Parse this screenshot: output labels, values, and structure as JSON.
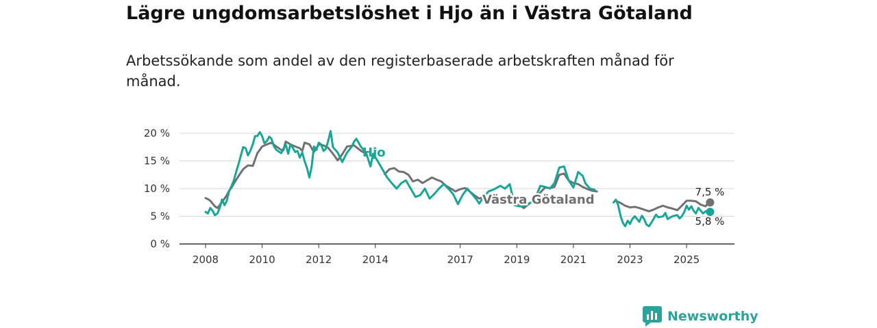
{
  "header": {
    "title": "Lägre ungdomsarbetslöshet i Hjo än i Västra Götaland",
    "subtitle": "Arbetssökande som andel av den registerbaserade arbetskraften månad för månad."
  },
  "brand": {
    "name": "Newsworthy",
    "icon": "newsworthy-logo-icon",
    "color": "#2aa39a"
  },
  "chart_data": {
    "type": "line",
    "title": "Lägre ungdomsarbetslöshet i Hjo än i Västra Götaland",
    "subtitle": "Arbetssökande som andel av den registerbaserade arbetskraften månad för månad.",
    "xlabel": "",
    "ylabel": "",
    "xlim": [
      2008,
      2025.83
    ],
    "ylim": [
      0,
      20
    ],
    "grid": true,
    "x_ticks": [
      2008,
      2010,
      2012,
      2014,
      2017,
      2019,
      2021,
      2023,
      2025
    ],
    "x_tick_labels": [
      "2008",
      "2010",
      "2012",
      "2014",
      "2017",
      "2019",
      "2021",
      "2023",
      "2025"
    ],
    "y_ticks": [
      0,
      5,
      10,
      15,
      20
    ],
    "y_tick_labels": [
      "0 %",
      "5 %",
      "10 %",
      "15 %",
      "20 %"
    ],
    "series": [
      {
        "name": "Västra Götaland",
        "label": "Västra Götaland",
        "color": "#707070",
        "end_label": "7,5 %",
        "points": [
          [
            2008,
            8.3
          ],
          [
            2008.08,
            8.1
          ],
          [
            2008.17,
            7.8
          ],
          [
            2008.25,
            7.3
          ],
          [
            2008.33,
            6.8
          ],
          [
            2008.42,
            6.5
          ],
          [
            2008.5,
            7.0
          ],
          [
            2008.58,
            7.6
          ],
          [
            2008.67,
            8.2
          ],
          [
            2008.75,
            8.8
          ],
          [
            2008.83,
            9.6
          ],
          [
            2008.92,
            10.2
          ],
          [
            2009,
            10.9
          ],
          [
            2009.17,
            12.3
          ],
          [
            2009.33,
            13.5
          ],
          [
            2009.5,
            14.2
          ],
          [
            2009.67,
            14.1
          ],
          [
            2009.83,
            16.4
          ],
          [
            2010,
            17.6
          ],
          [
            2010.17,
            18.0
          ],
          [
            2010.33,
            18.3
          ],
          [
            2010.5,
            17.6
          ],
          [
            2010.67,
            17.0
          ],
          [
            2010.75,
            16.9
          ],
          [
            2010.83,
            18.5
          ],
          [
            2011,
            18.0
          ],
          [
            2011.17,
            17.6
          ],
          [
            2011.33,
            17.3
          ],
          [
            2011.42,
            16.8
          ],
          [
            2011.5,
            18.3
          ],
          [
            2011.67,
            18.0
          ],
          [
            2011.83,
            16.6
          ],
          [
            2012,
            18.0
          ],
          [
            2012.17,
            17.8
          ],
          [
            2012.33,
            17.4
          ],
          [
            2012.5,
            16.3
          ],
          [
            2012.67,
            15.1
          ],
          [
            2012.83,
            16.2
          ],
          [
            2013,
            17.6
          ],
          [
            2013.25,
            17.8
          ],
          [
            2013.5,
            16.8
          ],
          [
            2013.6,
            16.5
          ],
          [
            2013.67,
            16.2
          ],
          [
            2014.33,
            12.6
          ],
          [
            2014.5,
            13.5
          ],
          [
            2014.67,
            13.7
          ],
          [
            2014.83,
            13.1
          ],
          [
            2015,
            13.0
          ],
          [
            2015.17,
            12.5
          ],
          [
            2015.33,
            11.3
          ],
          [
            2015.5,
            11.6
          ],
          [
            2015.67,
            11.0
          ],
          [
            2015.83,
            11.5
          ],
          [
            2016,
            12.0
          ],
          [
            2016.17,
            11.6
          ],
          [
            2016.33,
            11.3
          ],
          [
            2016.5,
            10.5
          ],
          [
            2016.67,
            10.0
          ],
          [
            2016.83,
            9.5
          ],
          [
            2017,
            9.9
          ],
          [
            2017.17,
            10.1
          ],
          [
            2017.33,
            9.5
          ],
          [
            2017.5,
            8.8
          ],
          [
            2017.67,
            8.2
          ],
          [
            2017.83,
            8.5
          ],
          [
            2018,
            8.4
          ],
          [
            2018.25,
            8.0
          ],
          [
            2018.42,
            7.7
          ],
          [
            2018.58,
            7.6
          ],
          [
            2018.75,
            7.4
          ],
          [
            2018.92,
            7.3
          ],
          [
            2019.08,
            7.0
          ],
          [
            2019.25,
            6.5
          ],
          [
            2019.42,
            7.2
          ],
          [
            2019.5,
            7.5
          ],
          [
            2019.67,
            8.0
          ],
          [
            2019.83,
            9.3
          ],
          [
            2020,
            10.2
          ],
          [
            2020.17,
            10.1
          ],
          [
            2020.33,
            10.3
          ],
          [
            2020.5,
            12.5
          ],
          [
            2020.67,
            12.7
          ],
          [
            2020.83,
            11.5
          ],
          [
            2021,
            11.0
          ],
          [
            2021.17,
            10.8
          ],
          [
            2021.33,
            10.3
          ],
          [
            2021.5,
            9.9
          ],
          [
            2021.67,
            9.6
          ],
          [
            2021.83,
            9.5
          ],
          [
            2022.5,
            7.8
          ],
          [
            2022.67,
            7.4
          ],
          [
            2022.83,
            6.9
          ],
          [
            2023,
            6.6
          ],
          [
            2023.17,
            6.7
          ],
          [
            2023.33,
            6.5
          ],
          [
            2023.5,
            6.2
          ],
          [
            2023.67,
            5.9
          ],
          [
            2023.83,
            6.2
          ],
          [
            2024,
            6.6
          ],
          [
            2024.17,
            6.9
          ],
          [
            2024.33,
            6.6
          ],
          [
            2024.5,
            6.4
          ],
          [
            2024.67,
            6.1
          ],
          [
            2024.83,
            6.9
          ],
          [
            2025,
            7.8
          ],
          [
            2025.17,
            7.8
          ],
          [
            2025.33,
            7.7
          ],
          [
            2025.5,
            7.1
          ],
          [
            2025.67,
            6.8
          ],
          [
            2025.75,
            7.4
          ],
          [
            2025.83,
            7.5
          ]
        ]
      },
      {
        "name": "Hjo",
        "label": "Hjo",
        "color": "#17a597",
        "end_label": "5,8 %",
        "points": [
          [
            2008,
            5.8
          ],
          [
            2008.08,
            5.5
          ],
          [
            2008.17,
            6.5
          ],
          [
            2008.25,
            6.0
          ],
          [
            2008.33,
            5.2
          ],
          [
            2008.42,
            5.5
          ],
          [
            2008.5,
            6.5
          ],
          [
            2008.58,
            8.0
          ],
          [
            2008.67,
            7.0
          ],
          [
            2008.75,
            7.8
          ],
          [
            2008.83,
            9.5
          ],
          [
            2008.92,
            10.5
          ],
          [
            2009,
            11.5
          ],
          [
            2009.08,
            13.0
          ],
          [
            2009.17,
            14.5
          ],
          [
            2009.25,
            16.0
          ],
          [
            2009.33,
            17.5
          ],
          [
            2009.42,
            17.3
          ],
          [
            2009.5,
            16.0
          ],
          [
            2009.58,
            16.8
          ],
          [
            2009.67,
            18.0
          ],
          [
            2009.75,
            19.5
          ],
          [
            2009.83,
            19.5
          ],
          [
            2009.92,
            20.2
          ],
          [
            2010,
            19.5
          ],
          [
            2010.08,
            18.2
          ],
          [
            2010.17,
            18.6
          ],
          [
            2010.25,
            19.4
          ],
          [
            2010.33,
            19.0
          ],
          [
            2010.42,
            17.6
          ],
          [
            2010.5,
            17.0
          ],
          [
            2010.67,
            16.4
          ],
          [
            2010.75,
            17.2
          ],
          [
            2010.83,
            18.0
          ],
          [
            2010.92,
            16.3
          ],
          [
            2011,
            18.0
          ],
          [
            2011.08,
            17.4
          ],
          [
            2011.17,
            16.6
          ],
          [
            2011.25,
            16.8
          ],
          [
            2011.33,
            15.6
          ],
          [
            2011.42,
            16.5
          ],
          [
            2011.5,
            15.0
          ],
          [
            2011.58,
            13.8
          ],
          [
            2011.67,
            12.0
          ],
          [
            2011.75,
            14.0
          ],
          [
            2011.83,
            17.6
          ],
          [
            2011.92,
            17.0
          ],
          [
            2012,
            18.3
          ],
          [
            2012.08,
            18.0
          ],
          [
            2012.17,
            16.8
          ],
          [
            2012.25,
            17.2
          ],
          [
            2012.33,
            18.5
          ],
          [
            2012.42,
            20.4
          ],
          [
            2012.5,
            17.5
          ],
          [
            2012.67,
            16.5
          ],
          [
            2012.83,
            14.8
          ],
          [
            2013,
            16.5
          ],
          [
            2013.17,
            17.6
          ],
          [
            2013.25,
            18.5
          ],
          [
            2013.33,
            19.0
          ],
          [
            2013.5,
            17.5
          ],
          [
            2013.67,
            16.5
          ],
          [
            2013.83,
            14.0
          ],
          [
            2013.92,
            16.3
          ],
          [
            2014.08,
            15.0
          ],
          [
            2014.25,
            13.5
          ],
          [
            2014.42,
            12.0
          ],
          [
            2014.58,
            11.0
          ],
          [
            2014.75,
            10.0
          ],
          [
            2014.92,
            11.0
          ],
          [
            2015.08,
            11.5
          ],
          [
            2015.25,
            10.0
          ],
          [
            2015.42,
            8.5
          ],
          [
            2015.58,
            8.8
          ],
          [
            2015.75,
            10.0
          ],
          [
            2015.92,
            8.2
          ],
          [
            2016.08,
            9.0
          ],
          [
            2016.25,
            10.0
          ],
          [
            2016.42,
            10.8
          ],
          [
            2016.58,
            10.0
          ],
          [
            2016.75,
            9.0
          ],
          [
            2016.92,
            7.2
          ],
          [
            2017.08,
            8.8
          ],
          [
            2017.25,
            10.0
          ],
          [
            2017.42,
            9.0
          ],
          [
            2017.58,
            8.0
          ],
          [
            2017.67,
            7.3
          ],
          [
            2017.83,
            8.5
          ],
          [
            2018,
            9.5
          ],
          [
            2018.17,
            9.8
          ],
          [
            2018.42,
            10.5
          ],
          [
            2018.58,
            10.0
          ],
          [
            2018.75,
            10.8
          ],
          [
            2018.92,
            7.0
          ],
          [
            2019.08,
            6.8
          ],
          [
            2019.25,
            6.9
          ],
          [
            2019.5,
            7.5
          ],
          [
            2019.67,
            8.5
          ],
          [
            2019.83,
            10.5
          ],
          [
            2020,
            10.3
          ],
          [
            2020.17,
            10.0
          ],
          [
            2020.33,
            11.0
          ],
          [
            2020.5,
            13.8
          ],
          [
            2020.67,
            14.0
          ],
          [
            2020.83,
            11.5
          ],
          [
            2021,
            10.2
          ],
          [
            2021.17,
            13.0
          ],
          [
            2021.33,
            12.3
          ],
          [
            2021.42,
            11.0
          ],
          [
            2021.58,
            10.0
          ],
          [
            2021.75,
            9.8
          ],
          [
            2022.42,
            7.5
          ],
          [
            2022.5,
            8.0
          ],
          [
            2022.58,
            7.0
          ],
          [
            2022.67,
            5.0
          ],
          [
            2022.75,
            3.8
          ],
          [
            2022.83,
            3.2
          ],
          [
            2022.92,
            4.2
          ],
          [
            2023,
            3.6
          ],
          [
            2023.08,
            4.5
          ],
          [
            2023.17,
            5.0
          ],
          [
            2023.25,
            4.5
          ],
          [
            2023.33,
            4.0
          ],
          [
            2023.42,
            5.1
          ],
          [
            2023.5,
            4.5
          ],
          [
            2023.58,
            3.5
          ],
          [
            2023.67,
            3.2
          ],
          [
            2023.75,
            3.8
          ],
          [
            2023.83,
            4.5
          ],
          [
            2023.92,
            5.3
          ],
          [
            2024,
            4.8
          ],
          [
            2024.17,
            5.0
          ],
          [
            2024.25,
            5.6
          ],
          [
            2024.33,
            4.5
          ],
          [
            2024.5,
            5.0
          ],
          [
            2024.67,
            5.2
          ],
          [
            2024.75,
            4.6
          ],
          [
            2024.83,
            5.0
          ],
          [
            2024.92,
            5.8
          ],
          [
            2025,
            6.9
          ],
          [
            2025.08,
            6.2
          ],
          [
            2025.17,
            6.8
          ],
          [
            2025.25,
            6.0
          ],
          [
            2025.33,
            5.5
          ],
          [
            2025.42,
            6.5
          ],
          [
            2025.5,
            6.0
          ],
          [
            2025.58,
            5.5
          ],
          [
            2025.67,
            5.9
          ],
          [
            2025.75,
            5.6
          ],
          [
            2025.83,
            5.8
          ]
        ]
      }
    ]
  }
}
